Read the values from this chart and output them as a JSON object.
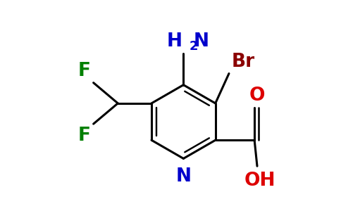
{
  "background_color": "#ffffff",
  "ring_color": "#000000",
  "bond_lw": 2.2,
  "colors": {
    "N": "#0000cc",
    "O": "#dd0000",
    "Br": "#8b0000",
    "F": "#008000",
    "NH2": "#0000cc",
    "C": "#000000"
  },
  "font_size": 19,
  "sub_font_size": 13
}
